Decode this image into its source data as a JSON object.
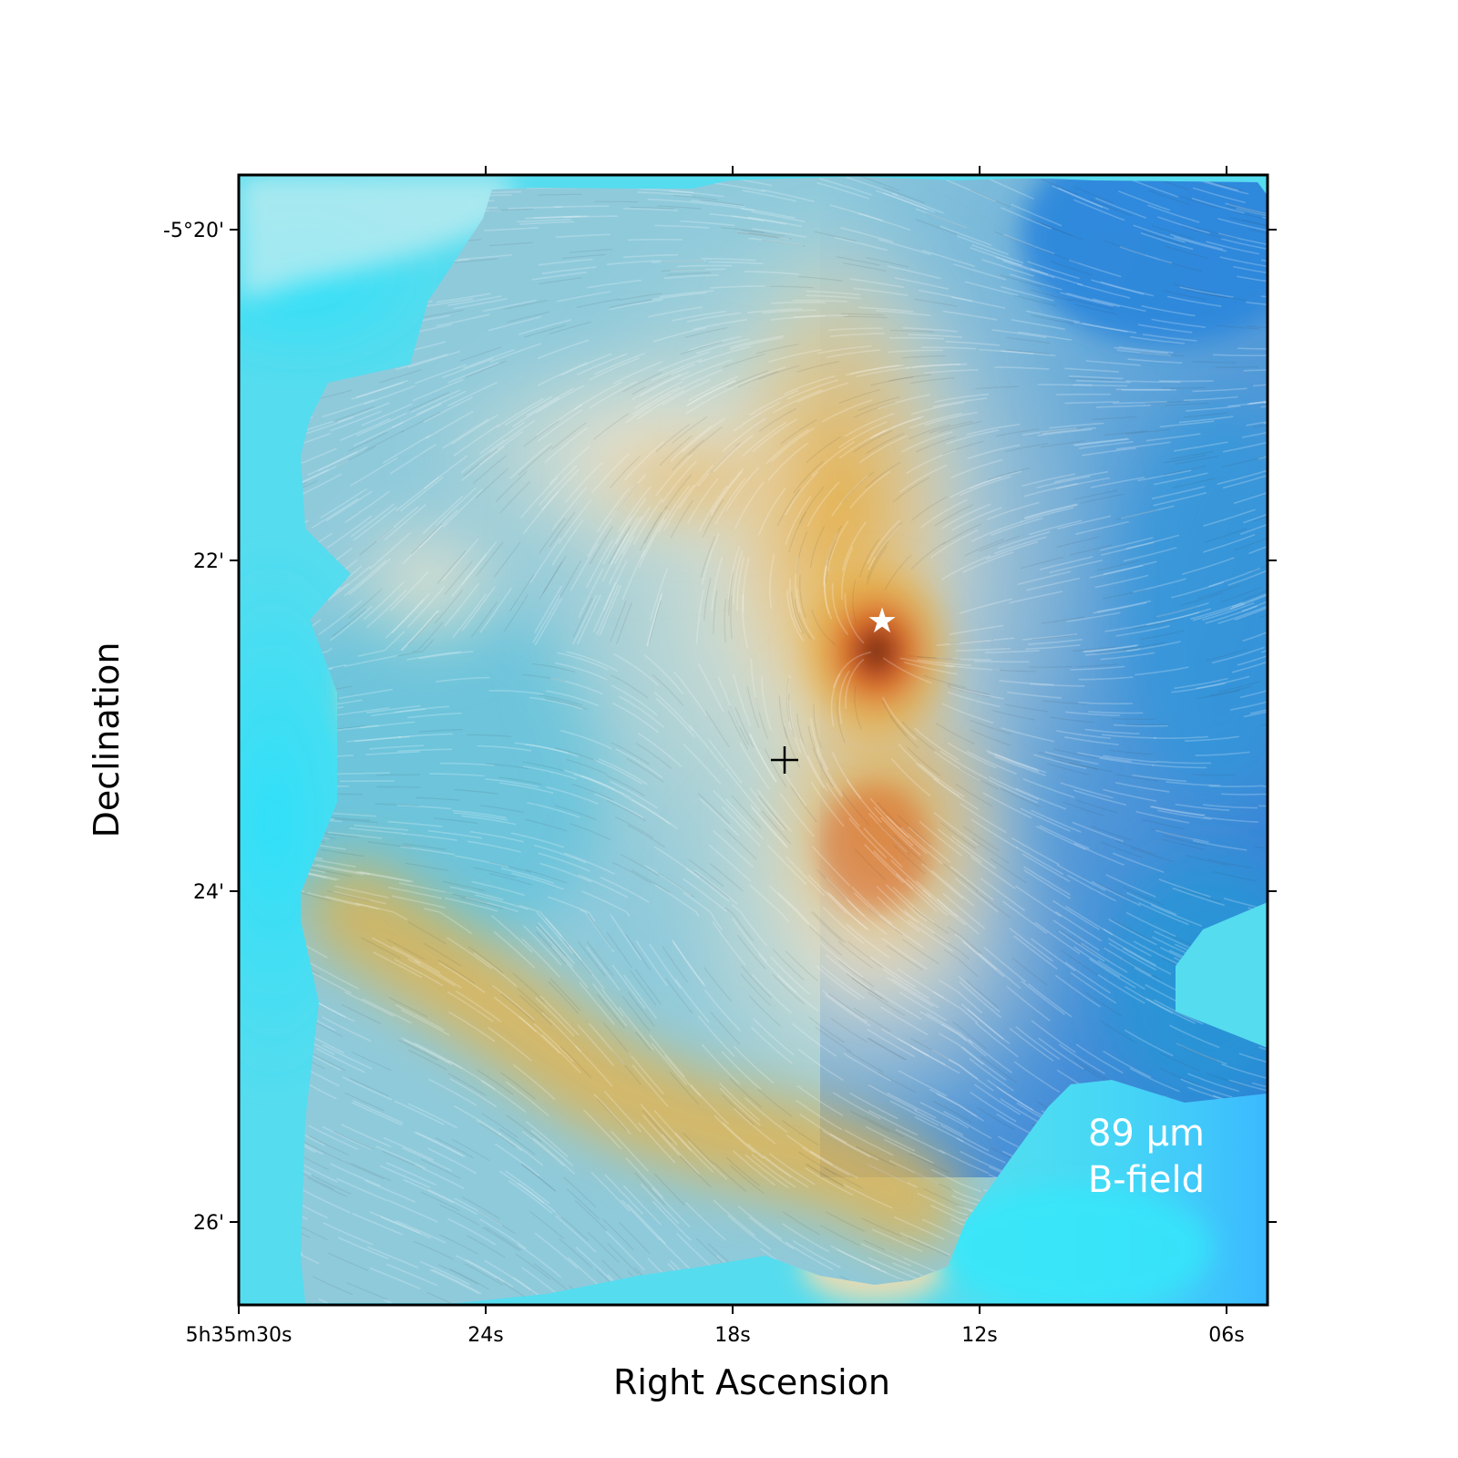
{
  "chart_data": {
    "type": "heatmap",
    "title": "",
    "xlabel": "Right Ascension",
    "ylabel": "Declination",
    "x_ticks": [
      "5h35m30s",
      "24s",
      "18s",
      "12s",
      "06s"
    ],
    "y_ticks": [
      "-5°20'",
      "22'",
      "24'",
      "26'"
    ],
    "annotation": {
      "line1": "89 μm",
      "line2": "B-field"
    },
    "markers": [
      {
        "name": "star",
        "symbol": "★",
        "color": "#ffffff"
      },
      {
        "name": "cross",
        "symbol": "+",
        "color": "#000000"
      }
    ],
    "colormap": [
      "#1e6ed8",
      "#2fdcf5",
      "#bfe4ea",
      "#f1e4cc",
      "#e6a52c",
      "#d9531e",
      "#2a1410"
    ],
    "grid": false
  }
}
